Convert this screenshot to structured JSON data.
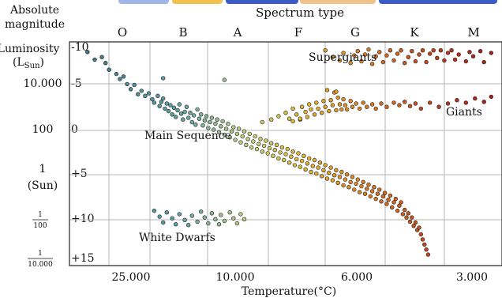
{
  "chart_data": {
    "type": "scatter",
    "header": {
      "abs_mag_label_1": "Absolute",
      "abs_mag_label_2": "magnitude",
      "spectrum_title": "Spectrum type"
    },
    "spectral_classes": [
      "O",
      "B",
      "A",
      "F",
      "G",
      "K",
      "M"
    ],
    "temperature_ticks": [
      "25.000",
      "10.000",
      "6.000",
      "3.000"
    ],
    "xlabel": "Temperature(°C)",
    "magnitude_ticks": [
      "-10",
      "-5",
      "0",
      "+5",
      "+10",
      "+15"
    ],
    "luminosity_axis": {
      "label_1": "Luminosity",
      "label_2": "(L",
      "label_sub": "Sun",
      "label_end": ")",
      "ticks": [
        {
          "kind": "text",
          "text": "10.000"
        },
        {
          "kind": "text",
          "text": "100"
        },
        {
          "kind": "text2",
          "text": "1",
          "text2": "(Sun)"
        },
        {
          "kind": "frac",
          "num": "1",
          "den": "100"
        },
        {
          "kind": "frac",
          "num": "1",
          "den": "10.000"
        }
      ]
    },
    "annotations": {
      "supergiants": "Supergiants",
      "giants": "Giants",
      "main_sequence": "Main Sequence",
      "white_dwarfs": "White Dwarfs"
    },
    "groups": [
      {
        "label_key": "main_sequence",
        "points": [
          [
            0.5,
            -9.8
          ],
          [
            0.7,
            -8.9
          ],
          [
            0.9,
            -9.2
          ],
          [
            1.0,
            -8.5
          ],
          [
            1.1,
            -7.7
          ],
          [
            1.3,
            -7.2
          ],
          [
            1.4,
            -6.6
          ],
          [
            1.5,
            -6.9
          ],
          [
            1.6,
            -6.0
          ],
          [
            1.7,
            -5.4
          ],
          [
            1.8,
            -5.9
          ],
          [
            1.9,
            -4.8
          ],
          [
            2.0,
            -5.2
          ],
          [
            2.1,
            -4.6
          ],
          [
            2.2,
            -4.9
          ],
          [
            2.3,
            -4.2
          ],
          [
            2.35,
            -3.8
          ],
          [
            2.45,
            -4.6
          ],
          [
            2.5,
            -3.4
          ],
          [
            2.55,
            -3.9
          ],
          [
            2.6,
            -4.3
          ],
          [
            2.65,
            -3.1
          ],
          [
            2.7,
            -3.7
          ],
          [
            2.75,
            -2.8
          ],
          [
            2.8,
            -3.5
          ],
          [
            2.85,
            -2.4
          ],
          [
            2.9,
            -3.2
          ],
          [
            2.95,
            -2.1
          ],
          [
            3.0,
            -2.9
          ],
          [
            3.05,
            -3.6
          ],
          [
            3.1,
            -2.5
          ],
          [
            3.15,
            -1.8
          ],
          [
            3.2,
            -2.7
          ],
          [
            3.25,
            -3.3
          ],
          [
            3.3,
            -2.0
          ],
          [
            3.35,
            -2.6
          ],
          [
            3.4,
            -1.5
          ],
          [
            3.45,
            -2.3
          ],
          [
            3.5,
            -1.2
          ],
          [
            3.55,
            -3.0
          ],
          [
            3.6,
            -1.9
          ],
          [
            3.65,
            -2.4
          ],
          [
            3.7,
            -1.1
          ],
          [
            3.75,
            -1.7
          ],
          [
            3.8,
            -2.2
          ],
          [
            3.85,
            -0.8
          ],
          [
            3.9,
            -1.5
          ],
          [
            3.95,
            -2.0
          ],
          [
            4.0,
            -0.6
          ],
          [
            4.05,
            -1.3
          ],
          [
            4.1,
            -1.8
          ],
          [
            4.15,
            -0.3
          ],
          [
            4.2,
            -1.0
          ],
          [
            4.25,
            -1.6
          ],
          [
            4.3,
            0.0
          ],
          [
            4.35,
            -0.7
          ],
          [
            4.4,
            -1.3
          ],
          [
            4.45,
            0.3
          ],
          [
            4.5,
            -0.4
          ],
          [
            4.55,
            -0.9
          ],
          [
            4.6,
            0.6
          ],
          [
            4.65,
            -0.1
          ],
          [
            4.7,
            -0.7
          ],
          [
            4.75,
            0.9
          ],
          [
            4.8,
            0.2
          ],
          [
            4.85,
            -0.4
          ],
          [
            4.9,
            1.2
          ],
          [
            4.95,
            0.5
          ],
          [
            5.0,
            -0.1
          ],
          [
            5.05,
            1.5
          ],
          [
            5.1,
            0.8
          ],
          [
            5.15,
            0.2
          ],
          [
            5.2,
            1.7
          ],
          [
            5.25,
            1.1
          ],
          [
            5.3,
            0.5
          ],
          [
            5.35,
            2.0
          ],
          [
            5.4,
            1.3
          ],
          [
            5.45,
            0.7
          ],
          [
            5.5,
            2.2
          ],
          [
            5.55,
            1.6
          ],
          [
            5.6,
            1.0
          ],
          [
            5.65,
            2.5
          ],
          [
            5.7,
            1.8
          ],
          [
            5.75,
            1.2
          ],
          [
            5.8,
            2.8
          ],
          [
            5.85,
            2.1
          ],
          [
            5.9,
            1.5
          ],
          [
            5.95,
            3.0
          ],
          [
            6.0,
            2.3
          ],
          [
            6.05,
            1.7
          ],
          [
            6.1,
            3.3
          ],
          [
            6.15,
            2.6
          ],
          [
            6.2,
            2.0
          ],
          [
            6.25,
            3.6
          ],
          [
            6.3,
            2.9
          ],
          [
            6.35,
            2.2
          ],
          [
            6.4,
            3.8
          ],
          [
            6.45,
            3.1
          ],
          [
            6.5,
            2.5
          ],
          [
            6.55,
            4.1
          ],
          [
            6.6,
            3.4
          ],
          [
            6.65,
            2.8
          ],
          [
            6.7,
            4.4
          ],
          [
            6.75,
            3.7
          ],
          [
            6.8,
            3.0
          ],
          [
            6.85,
            4.6
          ],
          [
            6.9,
            3.9
          ],
          [
            6.95,
            3.3
          ],
          [
            7.0,
            4.9
          ],
          [
            7.05,
            4.2
          ],
          [
            7.1,
            3.6
          ],
          [
            7.15,
            5.2
          ],
          [
            7.2,
            4.5
          ],
          [
            7.25,
            3.9
          ],
          [
            7.3,
            5.4
          ],
          [
            7.35,
            4.8
          ],
          [
            7.4,
            4.2
          ],
          [
            7.45,
            5.7
          ],
          [
            7.5,
            5.0
          ],
          [
            7.55,
            4.4
          ],
          [
            7.6,
            6.0
          ],
          [
            7.65,
            5.3
          ],
          [
            7.7,
            4.7
          ],
          [
            7.75,
            6.2
          ],
          [
            7.8,
            5.6
          ],
          [
            7.85,
            5.0
          ],
          [
            7.9,
            6.5
          ],
          [
            7.95,
            5.8
          ],
          [
            8.0,
            5.3
          ],
          [
            8.05,
            6.8
          ],
          [
            8.1,
            6.1
          ],
          [
            8.15,
            5.6
          ],
          [
            8.2,
            7.0
          ],
          [
            8.25,
            6.4
          ],
          [
            8.3,
            5.9
          ],
          [
            8.35,
            7.3
          ],
          [
            8.4,
            6.7
          ],
          [
            8.45,
            6.2
          ],
          [
            8.5,
            7.6
          ],
          [
            8.55,
            7.0
          ],
          [
            8.6,
            6.5
          ],
          [
            8.65,
            7.9
          ],
          [
            8.7,
            7.3
          ],
          [
            8.75,
            6.9
          ],
          [
            8.8,
            8.2
          ],
          [
            8.85,
            7.7
          ],
          [
            8.9,
            7.2
          ],
          [
            8.95,
            8.6
          ],
          [
            9.0,
            8.0
          ],
          [
            9.05,
            7.6
          ],
          [
            9.1,
            9.0
          ],
          [
            9.15,
            8.4
          ],
          [
            9.2,
            8.0
          ],
          [
            9.25,
            9.4
          ],
          [
            9.3,
            8.9
          ],
          [
            9.35,
            9.8
          ],
          [
            9.4,
            9.3
          ],
          [
            9.45,
            10.3
          ],
          [
            9.5,
            9.8
          ],
          [
            9.55,
            10.8
          ],
          [
            9.6,
            10.4
          ],
          [
            9.65,
            11.3
          ],
          [
            9.7,
            11.0
          ],
          [
            9.75,
            11.8
          ],
          [
            9.8,
            12.4
          ],
          [
            9.85,
            13.0
          ],
          [
            9.9,
            13.6
          ],
          [
            9.95,
            14.2
          ]
        ]
      },
      {
        "label_key": "supergiants",
        "points": [
          [
            7.1,
            -10.0
          ],
          [
            7.3,
            -9.2
          ],
          [
            7.5,
            -8.8
          ],
          [
            7.6,
            -9.7
          ],
          [
            7.8,
            -8.5
          ],
          [
            7.9,
            -9.4
          ],
          [
            8.0,
            -9.9
          ],
          [
            8.1,
            -8.7
          ],
          [
            8.2,
            -9.5
          ],
          [
            8.3,
            -10.1
          ],
          [
            8.4,
            -8.4
          ],
          [
            8.5,
            -9.3
          ],
          [
            8.6,
            -9.8
          ],
          [
            8.7,
            -8.6
          ],
          [
            8.8,
            -9.4
          ],
          [
            8.9,
            -10.0
          ],
          [
            9.0,
            -8.8
          ],
          [
            9.1,
            -9.6
          ],
          [
            9.2,
            -10.0
          ],
          [
            9.3,
            -8.5
          ],
          [
            9.4,
            -9.2
          ],
          [
            9.5,
            -9.9
          ],
          [
            9.6,
            -8.7
          ],
          [
            9.7,
            -9.5
          ],
          [
            9.8,
            -10.0
          ],
          [
            9.9,
            -8.6
          ],
          [
            10.0,
            -9.6
          ],
          [
            10.1,
            -10.0
          ],
          [
            10.2,
            -9.1
          ],
          [
            10.3,
            -10.0
          ],
          [
            10.4,
            -8.8
          ],
          [
            10.5,
            -9.7
          ],
          [
            10.6,
            -10.0
          ],
          [
            10.7,
            -8.9
          ],
          [
            10.8,
            -9.5
          ],
          [
            11.0,
            -8.7
          ],
          [
            11.1,
            -9.8
          ],
          [
            11.2,
            -9.3
          ],
          [
            11.4,
            -9.9
          ],
          [
            11.5,
            -8.6
          ],
          [
            11.7,
            -9.7
          ]
        ]
      },
      {
        "label_key": "giants",
        "points": [
          [
            5.35,
            -1.5
          ],
          [
            5.6,
            -1.8
          ],
          [
            5.8,
            -2.2
          ],
          [
            6.0,
            -2.6
          ],
          [
            6.1,
            -1.9
          ],
          [
            6.2,
            -3.1
          ],
          [
            6.3,
            -2.4
          ],
          [
            6.4,
            -1.8
          ],
          [
            6.45,
            -3.3
          ],
          [
            6.55,
            -2.7
          ],
          [
            6.6,
            -2.1
          ],
          [
            6.65,
            -3.6
          ],
          [
            6.7,
            -3.0
          ],
          [
            6.8,
            -2.4
          ],
          [
            6.85,
            -3.8
          ],
          [
            6.9,
            -3.1
          ],
          [
            7.0,
            -2.6
          ],
          [
            7.05,
            -4.0
          ],
          [
            7.1,
            -3.3
          ],
          [
            7.15,
            -5.3
          ],
          [
            7.2,
            -2.8
          ],
          [
            7.25,
            -4.1
          ],
          [
            7.3,
            -3.5
          ],
          [
            7.35,
            -5.0
          ],
          [
            7.4,
            -2.9
          ],
          [
            7.45,
            -4.4
          ],
          [
            7.5,
            -3.6
          ],
          [
            7.55,
            -3.0
          ],
          [
            7.6,
            -4.2
          ],
          [
            7.65,
            -3.5
          ],
          [
            7.7,
            -3.0
          ],
          [
            7.8,
            -4.0
          ],
          [
            7.85,
            -3.3
          ],
          [
            7.95,
            -3.7
          ],
          [
            8.05,
            -3.1
          ],
          [
            8.15,
            -3.8
          ],
          [
            8.25,
            -3.3
          ],
          [
            8.4,
            -3.6
          ],
          [
            8.5,
            -3.1
          ],
          [
            8.65,
            -3.7
          ],
          [
            8.8,
            -3.3
          ],
          [
            9.0,
            -3.8
          ],
          [
            9.15,
            -3.5
          ],
          [
            9.3,
            -3.9
          ],
          [
            9.45,
            -3.4
          ],
          [
            9.6,
            -3.7
          ],
          [
            9.75,
            -3.1
          ],
          [
            10.0,
            -3.8
          ],
          [
            10.25,
            -3.3
          ],
          [
            10.5,
            -3.7
          ],
          [
            10.75,
            -4.1
          ],
          [
            11.0,
            -3.8
          ],
          [
            11.25,
            -4.3
          ],
          [
            11.5,
            -3.9
          ],
          [
            11.7,
            -4.5
          ]
        ]
      },
      {
        "label_key": "white_dwarfs",
        "points": [
          [
            2.35,
            9.0
          ],
          [
            2.5,
            9.7
          ],
          [
            2.6,
            10.4
          ],
          [
            2.7,
            9.2
          ],
          [
            2.85,
            9.9
          ],
          [
            2.95,
            10.6
          ],
          [
            3.05,
            9.4
          ],
          [
            3.2,
            10.1
          ],
          [
            3.3,
            10.7
          ],
          [
            3.4,
            9.6
          ],
          [
            3.55,
            10.3
          ],
          [
            3.65,
            9.1
          ],
          [
            3.75,
            9.8
          ],
          [
            3.85,
            10.5
          ],
          [
            3.95,
            9.3
          ],
          [
            4.05,
            10.0
          ],
          [
            4.15,
            10.6
          ],
          [
            4.2,
            9.5
          ],
          [
            4.3,
            10.2
          ],
          [
            4.45,
            9.2
          ],
          [
            4.55,
            9.9
          ],
          [
            4.65,
            10.5
          ],
          [
            4.75,
            9.4
          ],
          [
            4.85,
            10.0
          ]
        ]
      }
    ],
    "outliers": [
      [
        4.3,
        -6.5
      ],
      [
        2.6,
        -6.7
      ],
      [
        6.2,
        -1.6
      ],
      [
        6.4,
        -1.9
      ],
      [
        7.4,
        -5.1
      ]
    ],
    "x_range": [
      0,
      12
    ],
    "y_range": [
      -11,
      15.5
    ],
    "grid": true
  }
}
